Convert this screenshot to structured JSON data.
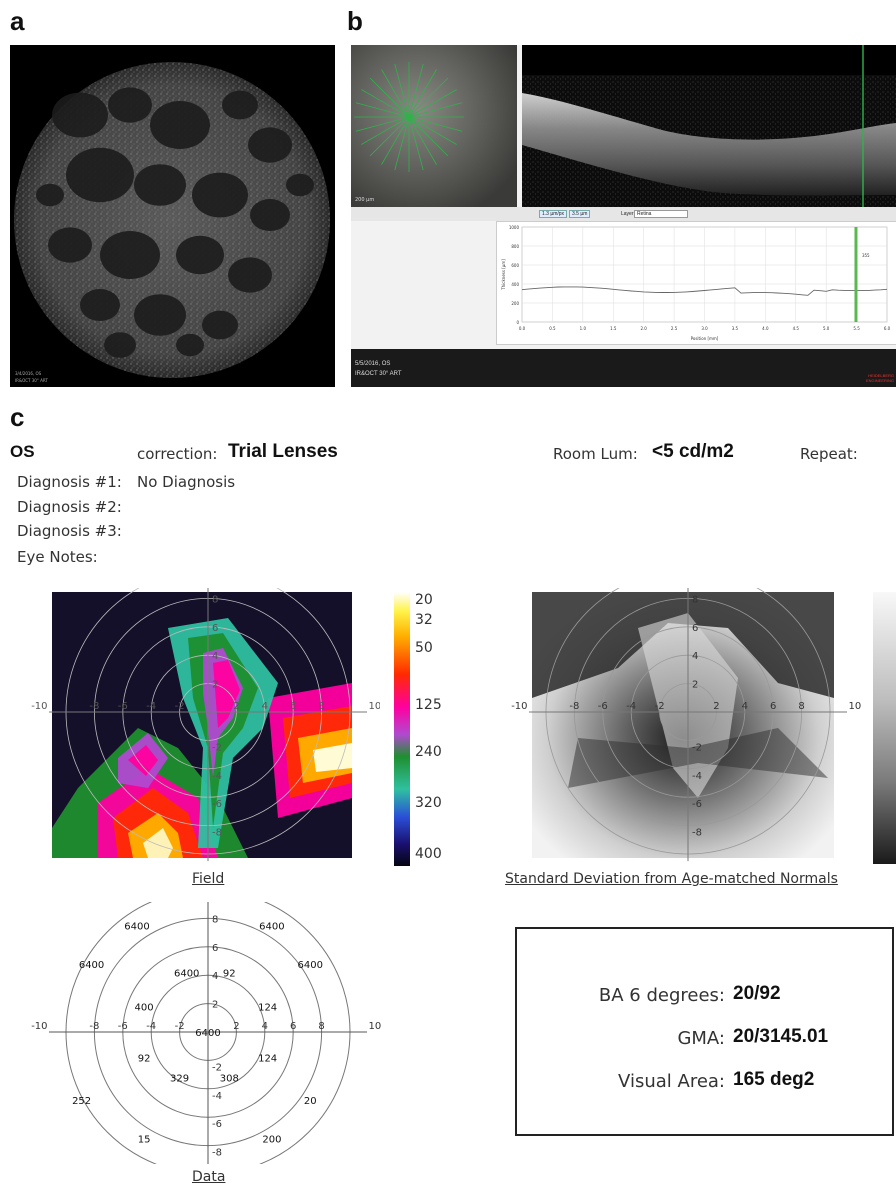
{
  "panels": {
    "a": {
      "letter": "a",
      "corner_lines": [
        "3/4/2016, OS",
        "IR&OCT 30° ART"
      ]
    },
    "b": {
      "letter": "b",
      "scale_label": "200 µm",
      "toolbar": {
        "btn1": "1.3 µm/px",
        "btn2": "3.5 µm",
        "layer_label": "Layer:",
        "layer_value": "Retina"
      },
      "thickness_plot": {
        "ylabel": "Thickness [µm]",
        "xlabel": "Position [mm]",
        "yticks": [
          "1000",
          "800",
          "600",
          "400",
          "200",
          "0"
        ],
        "xticks": [
          "0.0",
          "0.5",
          "1.0",
          "1.5",
          "2.0",
          "2.5",
          "3.0",
          "3.5",
          "4.0",
          "4.5",
          "5.0",
          "5.5",
          "6.0"
        ],
        "marker_value": "355"
      },
      "footer_lines": [
        "5/5/2016, OS",
        "IR&OCT 30° ART"
      ],
      "logo": "HEIDELBERG ENGINEERING"
    },
    "c": {
      "letter": "c",
      "eye": "OS",
      "correction_label": "correction:",
      "correction_value": "Trial Lenses",
      "room_lum_label": "Room Lum:",
      "room_lum_value": "<5 cd/m2",
      "repeat_label": "Repeat:",
      "diagnosis": [
        {
          "label": "Diagnosis #1:",
          "value": "No Diagnosis"
        },
        {
          "label": "Diagnosis #2:",
          "value": ""
        },
        {
          "label": "Diagnosis #3:",
          "value": ""
        }
      ],
      "eye_notes_label": "Eye Notes:",
      "field_caption": "Field",
      "sd_caption": "Standard Deviation from Age-matched Normals",
      "data_caption": "Data",
      "colorbar_labels": [
        "20",
        "32",
        "50",
        "125",
        "240",
        "320",
        "400"
      ],
      "axis_labels": {
        "left_end": "-10",
        "right_end": "10",
        "x_ticks": [
          "-8",
          "-6",
          "-4",
          "-2",
          "2",
          "4",
          "6",
          "8"
        ],
        "y_up": [
          "8",
          "6",
          "4",
          "2"
        ],
        "y_down": [
          "-2",
          "-4",
          "-6",
          "-8"
        ]
      },
      "data_values": [
        {
          "text": "6400",
          "x": -5,
          "y": 7.5
        },
        {
          "text": "6400",
          "x": 4.5,
          "y": 7.5
        },
        {
          "text": "6400",
          "x": -8.2,
          "y": 4.8
        },
        {
          "text": "6400",
          "x": -1.5,
          "y": 4.2
        },
        {
          "text": "92",
          "x": 1.5,
          "y": 4.2
        },
        {
          "text": "6400",
          "x": 7.2,
          "y": 4.8
        },
        {
          "text": "400",
          "x": -4.5,
          "y": 1.8
        },
        {
          "text": "124",
          "x": 4.2,
          "y": 1.8
        },
        {
          "text": "6400",
          "x": 0,
          "y": 0
        },
        {
          "text": "92",
          "x": -4.5,
          "y": -1.8
        },
        {
          "text": "124",
          "x": 4.2,
          "y": -1.8
        },
        {
          "text": "252",
          "x": -8.9,
          "y": -4.8
        },
        {
          "text": "329",
          "x": -2,
          "y": -3.2
        },
        {
          "text": "308",
          "x": 1.5,
          "y": -3.2
        },
        {
          "text": "20",
          "x": 7.2,
          "y": -4.8
        },
        {
          "text": "15",
          "x": -4.5,
          "y": -7.5
        },
        {
          "text": "200",
          "x": 4.5,
          "y": -7.5
        }
      ],
      "summary": [
        {
          "label": "BA 6 degrees:",
          "value": "20/92"
        },
        {
          "label": "GMA:",
          "value": "20/3145.01"
        },
        {
          "label": "Visual Area:",
          "value": "165 deg2"
        }
      ]
    }
  }
}
